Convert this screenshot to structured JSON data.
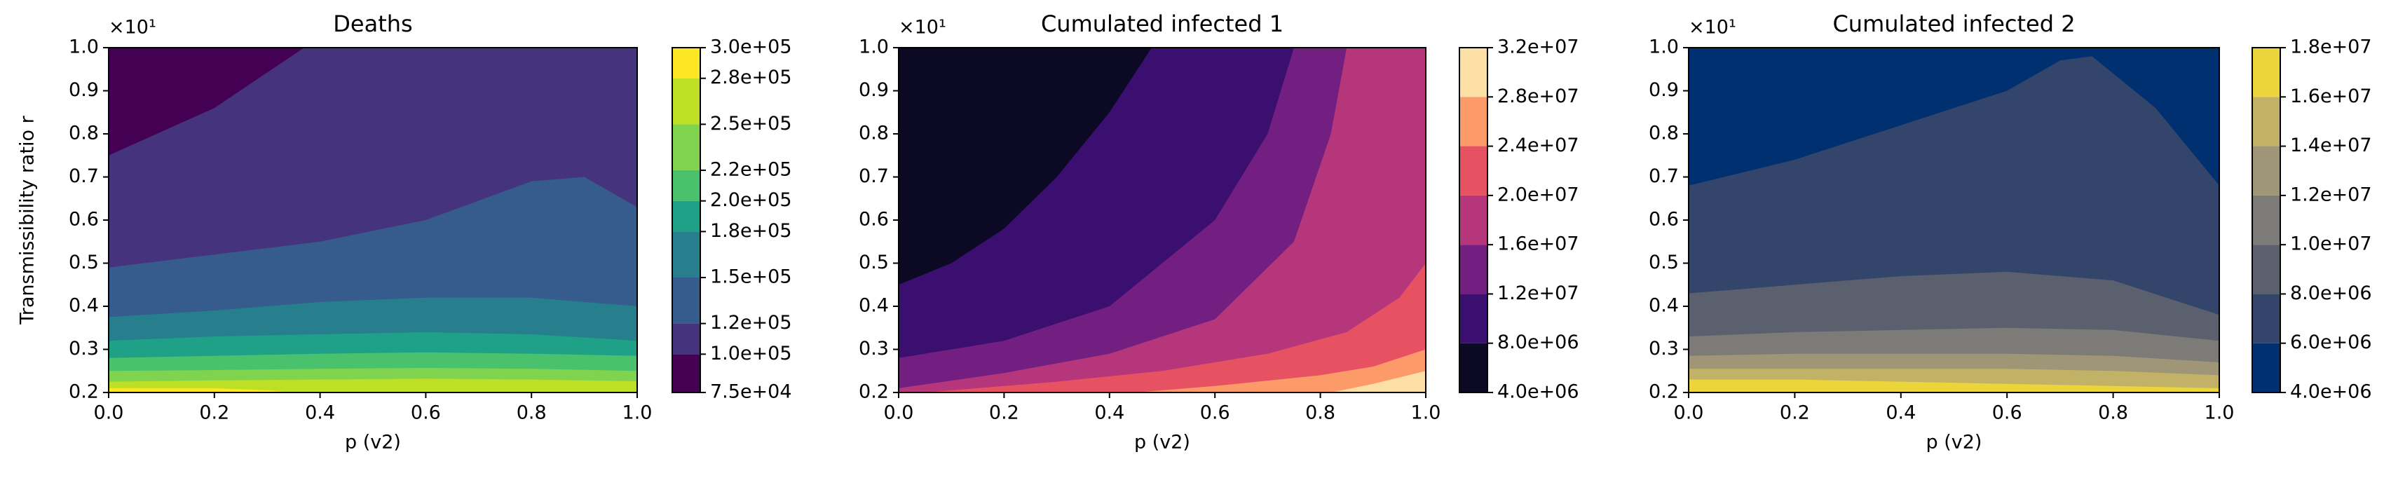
{
  "chart_data": [
    {
      "type": "contour",
      "title": "Deaths",
      "xlabel": "p (v2)",
      "ylabel": "Transmissibility ratio r",
      "y_offset_label": "×10¹",
      "xlim": [
        0,
        1
      ],
      "ylim": [
        0.2,
        1
      ],
      "xticks": [
        {
          "value": 0,
          "label": "0.0"
        },
        0.2,
        0.4,
        0.6,
        0.8,
        {
          "value": 1,
          "label": "1.0"
        }
      ],
      "yticks": [
        0.2,
        0.3,
        0.4,
        0.5,
        0.6,
        0.7,
        0.8,
        0.9,
        {
          "value": 1,
          "label": "1.0"
        }
      ],
      "colorbar": [
        {
          "value": 75000,
          "label": "7.5e+04"
        },
        {
          "value": 100000,
          "label": "1.0e+05"
        },
        {
          "value": 120000,
          "label": "1.2e+05"
        },
        {
          "value": 150000,
          "label": "1.5e+05"
        },
        {
          "value": 180000,
          "label": "1.8e+05"
        },
        {
          "value": 200000,
          "label": "2.0e+05"
        },
        {
          "value": 220000,
          "label": "2.2e+05"
        },
        {
          "value": 250000,
          "label": "2.5e+05"
        },
        {
          "value": 280000,
          "label": "2.8e+05"
        },
        {
          "value": 300000,
          "label": "3.0e+05"
        }
      ],
      "colors": [
        "#440154",
        "#46337e",
        "#365c8d",
        "#277f8e",
        "#1fa187",
        "#4ac16d",
        "#7fd34e",
        "#bddf26",
        "#fde725"
      ],
      "contours": [
        {
          "level": 100000,
          "x": [
            0,
            0.2,
            0.37
          ],
          "y": [
            0.75,
            0.86,
            1.0
          ]
        },
        {
          "level": 120000,
          "x": [
            0,
            0.2,
            0.4,
            0.6,
            0.8,
            0.9,
            1.0
          ],
          "y": [
            0.49,
            0.52,
            0.55,
            0.6,
            0.69,
            0.7,
            0.63
          ]
        },
        {
          "level": 150000,
          "x": [
            0,
            0.2,
            0.4,
            0.6,
            0.8,
            1.0
          ],
          "y": [
            0.375,
            0.39,
            0.41,
            0.42,
            0.42,
            0.4
          ]
        },
        {
          "level": 180000,
          "x": [
            0,
            0.2,
            0.4,
            0.6,
            0.8,
            1.0
          ],
          "y": [
            0.32,
            0.33,
            0.335,
            0.34,
            0.335,
            0.32
          ]
        },
        {
          "level": 200000,
          "x": [
            0,
            0.2,
            0.4,
            0.6,
            0.8,
            1.0
          ],
          "y": [
            0.28,
            0.285,
            0.29,
            0.293,
            0.29,
            0.285
          ]
        },
        {
          "level": 220000,
          "x": [
            0,
            0.2,
            0.4,
            0.6,
            0.8,
            1.0
          ],
          "y": [
            0.25,
            0.252,
            0.255,
            0.257,
            0.255,
            0.25
          ]
        },
        {
          "level": 250000,
          "x": [
            0,
            0.2,
            0.4,
            0.6,
            0.8,
            1.0
          ],
          "y": [
            0.225,
            0.228,
            0.23,
            0.232,
            0.23,
            0.226
          ]
        },
        {
          "level": 280000,
          "x": [
            0,
            0.2,
            0.3,
            0.35
          ],
          "y": [
            0.21,
            0.21,
            0.205,
            0.2
          ]
        }
      ]
    },
    {
      "type": "contour",
      "title": "Cumulated infected 1",
      "xlabel": "p (v2)",
      "y_offset_label": "×10¹",
      "xlim": [
        0,
        1
      ],
      "ylim": [
        0.2,
        1
      ],
      "xticks": [
        {
          "value": 0,
          "label": "0.0"
        },
        0.2,
        0.4,
        0.6,
        0.8,
        {
          "value": 1,
          "label": "1.0"
        }
      ],
      "yticks": [
        0.2,
        0.3,
        0.4,
        0.5,
        0.6,
        0.7,
        0.8,
        0.9,
        {
          "value": 1,
          "label": "1.0"
        }
      ],
      "colorbar": [
        {
          "value": 4000000,
          "label": "4.0e+06"
        },
        {
          "value": 8000000,
          "label": "8.0e+06"
        },
        {
          "value": 12000000,
          "label": "1.2e+07"
        },
        {
          "value": 16000000,
          "label": "1.6e+07"
        },
        {
          "value": 20000000,
          "label": "2.0e+07"
        },
        {
          "value": 24000000,
          "label": "2.4e+07"
        },
        {
          "value": 28000000,
          "label": "2.8e+07"
        },
        {
          "value": 32000000,
          "label": "3.2e+07"
        }
      ],
      "colors": [
        "#0b0924",
        "#3b0f70",
        "#721f81",
        "#b5367a",
        "#e75263",
        "#fd9a6a",
        "#fcdfa4"
      ],
      "contours": [
        {
          "level": 8000000,
          "x": [
            0,
            0.1,
            0.2,
            0.3,
            0.4,
            0.48
          ],
          "y": [
            0.45,
            0.5,
            0.58,
            0.7,
            0.85,
            1.0
          ]
        },
        {
          "level": 12000000,
          "x": [
            0,
            0.2,
            0.4,
            0.6,
            0.7,
            0.75
          ],
          "y": [
            0.28,
            0.32,
            0.4,
            0.6,
            0.8,
            1.0
          ]
        },
        {
          "level": 16000000,
          "x": [
            0,
            0.2,
            0.4,
            0.6,
            0.75,
            0.82,
            0.85
          ],
          "y": [
            0.21,
            0.245,
            0.29,
            0.37,
            0.55,
            0.8,
            1.0
          ]
        },
        {
          "level": 20000000,
          "x": [
            0.05,
            0.3,
            0.5,
            0.7,
            0.85,
            0.95,
            1.0
          ],
          "y": [
            0.2,
            0.225,
            0.25,
            0.29,
            0.34,
            0.42,
            0.5
          ]
        },
        {
          "level": 24000000,
          "x": [
            0.45,
            0.6,
            0.8,
            0.9,
            1.0
          ],
          "y": [
            0.2,
            0.215,
            0.24,
            0.26,
            0.3
          ]
        },
        {
          "level": 28000000,
          "x": [
            0.82,
            0.9,
            1.0
          ],
          "y": [
            0.2,
            0.22,
            0.25
          ]
        }
      ]
    },
    {
      "type": "contour",
      "title": "Cumulated infected 2",
      "xlabel": "p (v2)",
      "y_offset_label": "×10¹",
      "xlim": [
        0,
        1
      ],
      "ylim": [
        0.2,
        1
      ],
      "xticks": [
        {
          "value": 0,
          "label": "0.0"
        },
        0.2,
        0.4,
        0.6,
        0.8,
        {
          "value": 1,
          "label": "1.0"
        }
      ],
      "yticks": [
        0.2,
        0.3,
        0.4,
        0.5,
        0.6,
        0.7,
        0.8,
        0.9,
        {
          "value": 1,
          "label": "1.0"
        }
      ],
      "colorbar": [
        {
          "value": 4000000,
          "label": "4.0e+06"
        },
        {
          "value": 6000000,
          "label": "6.0e+06"
        },
        {
          "value": 8000000,
          "label": "8.0e+06"
        },
        {
          "value": 10000000,
          "label": "1.0e+07"
        },
        {
          "value": 12000000,
          "label": "1.2e+07"
        },
        {
          "value": 14000000,
          "label": "1.4e+07"
        },
        {
          "value": 16000000,
          "label": "1.6e+07"
        },
        {
          "value": 18000000,
          "label": "1.8e+07"
        }
      ],
      "colors": [
        "#00306f",
        "#34456b",
        "#5b606f",
        "#7c7b78",
        "#9e9677",
        "#c2b267",
        "#ecd43b"
      ],
      "contours": [
        {
          "level": 6000000,
          "x": [
            0,
            0.2,
            0.4,
            0.6,
            0.7,
            0.76,
            0.88,
            1.0
          ],
          "y": [
            0.68,
            0.74,
            0.82,
            0.9,
            0.97,
            0.98,
            0.86,
            0.68
          ]
        },
        {
          "level": 8000000,
          "x": [
            0,
            0.2,
            0.4,
            0.6,
            0.8,
            1.0
          ],
          "y": [
            0.43,
            0.45,
            0.47,
            0.48,
            0.46,
            0.38
          ]
        },
        {
          "level": 10000000,
          "x": [
            0,
            0.2,
            0.4,
            0.6,
            0.8,
            1.0
          ],
          "y": [
            0.33,
            0.34,
            0.345,
            0.35,
            0.345,
            0.32
          ]
        },
        {
          "level": 12000000,
          "x": [
            0,
            0.2,
            0.4,
            0.6,
            0.8,
            1.0
          ],
          "y": [
            0.285,
            0.29,
            0.29,
            0.29,
            0.285,
            0.27
          ]
        },
        {
          "level": 14000000,
          "x": [
            0,
            0.2,
            0.4,
            0.6,
            0.8,
            1.0
          ],
          "y": [
            0.255,
            0.255,
            0.255,
            0.255,
            0.25,
            0.24
          ]
        },
        {
          "level": 16000000,
          "x": [
            0,
            0.2,
            0.4,
            0.6,
            0.8,
            1.0
          ],
          "y": [
            0.23,
            0.23,
            0.225,
            0.22,
            0.215,
            0.21
          ]
        }
      ]
    }
  ]
}
